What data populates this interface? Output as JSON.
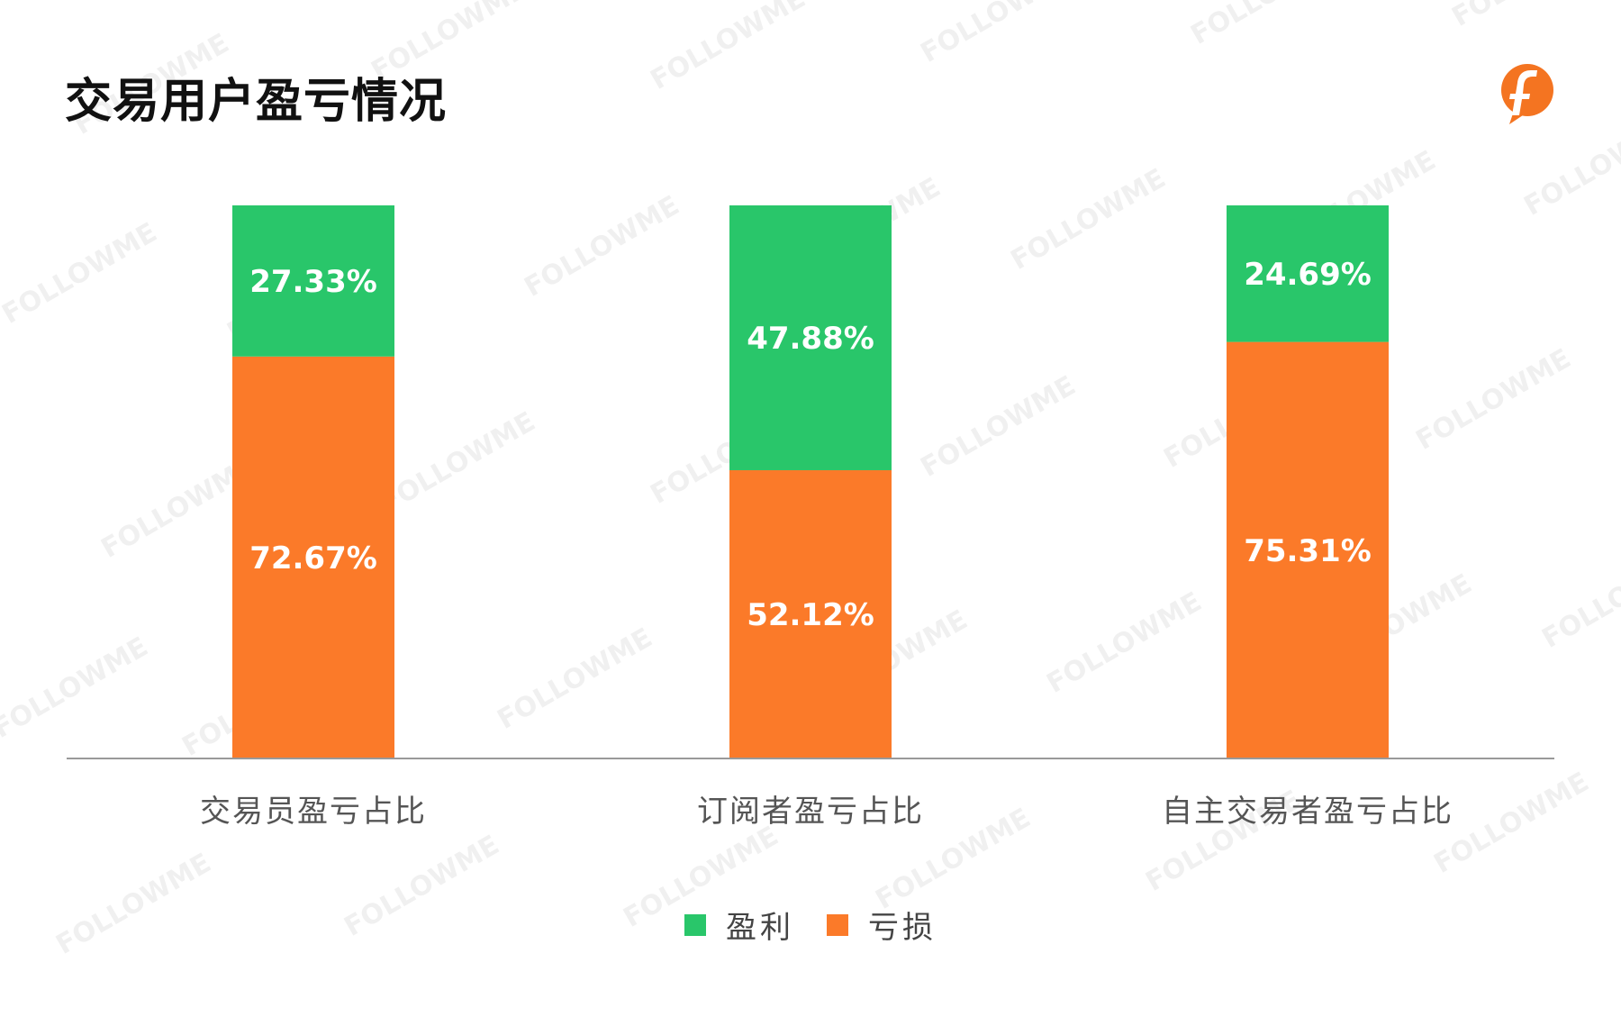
{
  "title": "交易用户盈亏情况",
  "logo": {
    "icon": "followme-f-logo",
    "color": "#f47421"
  },
  "watermark_text": "FOLLOWME",
  "colors": {
    "profit": "#29c66a",
    "loss": "#fb7a29",
    "axis": "#999999",
    "label": "#555555"
  },
  "legend": [
    {
      "label": "盈利",
      "color": "#29c66a"
    },
    {
      "label": "亏损",
      "color": "#fb7a29"
    }
  ],
  "chart_data": {
    "type": "bar",
    "stacked": true,
    "title": "交易用户盈亏情况",
    "xlabel": "",
    "ylabel": "",
    "ylim": [
      0,
      100
    ],
    "grid": false,
    "legend_position": "bottom",
    "categories": [
      "交易员盈亏占比",
      "订阅者盈亏占比",
      "自主交易者盈亏占比"
    ],
    "series": [
      {
        "name": "亏损",
        "color": "#fb7a29",
        "values": [
          72.67,
          52.12,
          75.31
        ],
        "labels": [
          "72.67%",
          "52.12%",
          "75.31%"
        ]
      },
      {
        "name": "盈利",
        "color": "#29c66a",
        "values": [
          27.33,
          47.88,
          24.69
        ],
        "labels": [
          "27.33%",
          "47.88%",
          "24.69%"
        ]
      }
    ]
  }
}
